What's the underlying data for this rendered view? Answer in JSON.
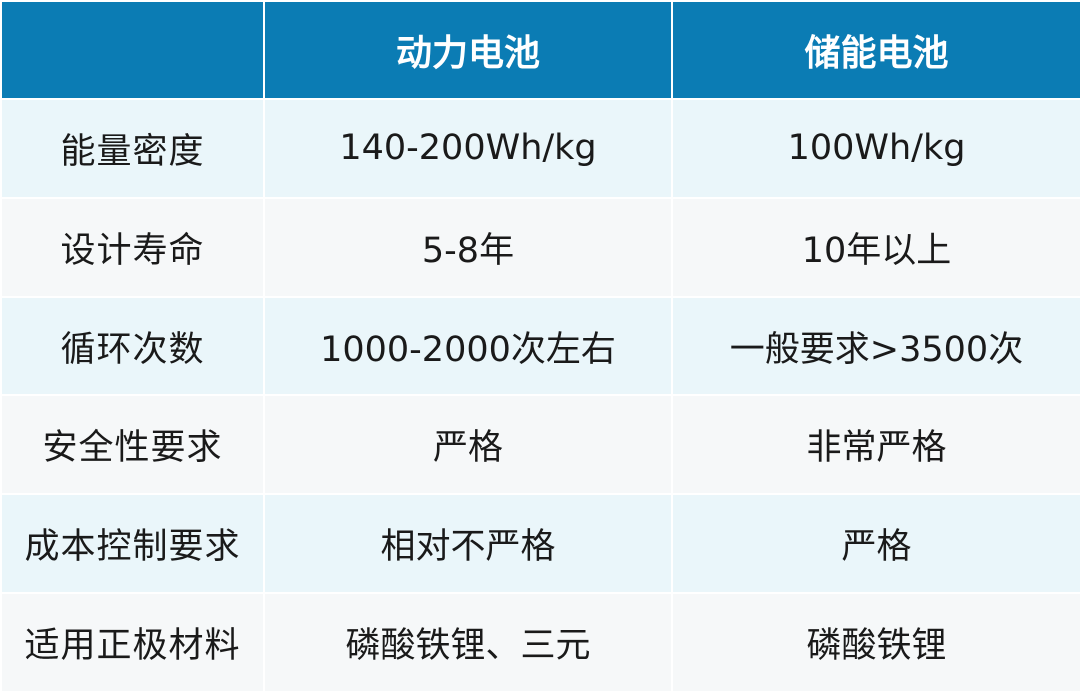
{
  "table": {
    "headers": [
      "",
      "动力电池",
      "储能电池"
    ],
    "rows": [
      {
        "label": "能量密度",
        "power": "140-200Wh/kg",
        "storage": "100Wh/kg"
      },
      {
        "label": "设计寿命",
        "power": "5-8年",
        "storage": "10年以上"
      },
      {
        "label": "循环次数",
        "power": "1000-2000次左右",
        "storage": "一般要求>3500次"
      },
      {
        "label": "安全性要求",
        "power": "严格",
        "storage": "非常严格"
      },
      {
        "label": "成本控制要求",
        "power": "相对不严格",
        "storage": "严格"
      },
      {
        "label": "适用正极材料",
        "power": "磷酸铁锂、三元",
        "storage": "磷酸铁锂"
      }
    ]
  },
  "colors": {
    "header_bg": "#0b7cb4",
    "row_odd_bg": "#eaf6fa",
    "row_even_bg": "#f6f8f9",
    "text": "#1a1a1a"
  }
}
